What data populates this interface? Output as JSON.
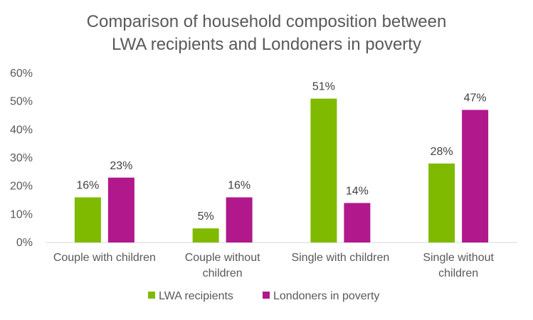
{
  "chart_data": {
    "type": "bar",
    "title_lines": [
      "Comparison of household composition between",
      "LWA recipients and Londoners in poverty"
    ],
    "categories": [
      [
        "Couple with children"
      ],
      [
        "Couple without",
        "children"
      ],
      [
        "Single with children"
      ],
      [
        "Single without",
        "children"
      ]
    ],
    "series": [
      {
        "name": "LWA recipients",
        "color": "#7FBA00",
        "values": [
          16,
          5,
          51,
          28
        ],
        "labels": [
          "16%",
          "5%",
          "51%",
          "28%"
        ]
      },
      {
        "name": "Londoners in poverty",
        "color": "#B0188C",
        "values": [
          23,
          16,
          14,
          47
        ],
        "labels": [
          "23%",
          "16%",
          "14%",
          "47%"
        ]
      }
    ],
    "y_ticks": [
      0,
      10,
      20,
      30,
      40,
      50,
      60
    ],
    "y_tick_labels": [
      "0%",
      "10%",
      "20%",
      "30%",
      "40%",
      "50%",
      "60%"
    ],
    "ylim": [
      0,
      60
    ],
    "xlabel": "",
    "ylabel": "",
    "grid": false,
    "legend_position": "bottom",
    "axis_color": "#D9D9D9"
  }
}
